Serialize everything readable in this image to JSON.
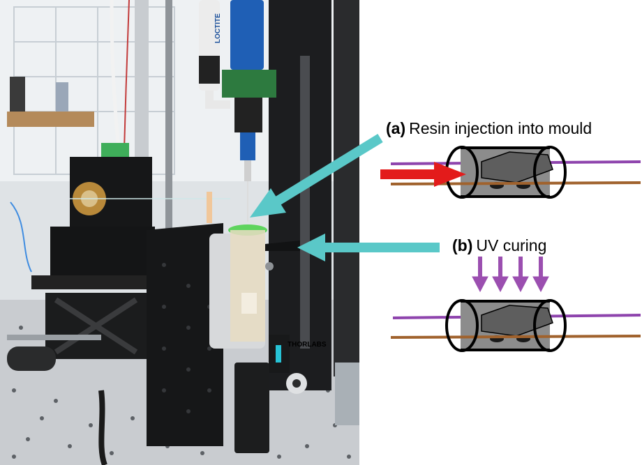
{
  "figure": {
    "step_a": {
      "tag": "(a)",
      "text": "Resin injection into mould"
    },
    "step_b": {
      "tag": "(b)",
      "text": "UV curing"
    },
    "photo_stamps": {
      "cartridge": "LOCTITE",
      "stage": "THORLABS"
    }
  },
  "colors": {
    "pointer_arrow": "#5ac8c8",
    "injection_arrow": "#e31b1b",
    "uv_arrows": "#9b4fb0",
    "fiber_purple": "#8e44ad",
    "fiber_brown": "#a0622d",
    "mould_body": "#8c8c8c",
    "mould_outline": "#000000"
  }
}
